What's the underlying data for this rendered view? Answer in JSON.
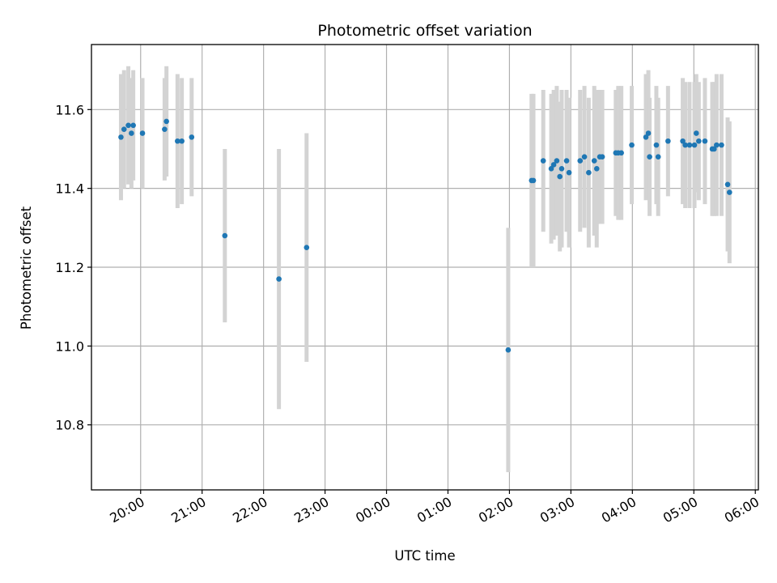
{
  "chart_data": {
    "type": "scatter",
    "title": "Photometric offset variation",
    "xlabel": "UTC time",
    "ylabel": "Photometric offset",
    "x_unit": "UTC time of day (hours; values after midnight exceed 24)",
    "xlim": [
      19.2,
      30.05
    ],
    "ylim": [
      10.635,
      11.765
    ],
    "grid": true,
    "x_ticks": [
      {
        "value": 20,
        "label": "20:00"
      },
      {
        "value": 21,
        "label": "21:00"
      },
      {
        "value": 22,
        "label": "22:00"
      },
      {
        "value": 23,
        "label": "23:00"
      },
      {
        "value": 24,
        "label": "00:00"
      },
      {
        "value": 25,
        "label": "01:00"
      },
      {
        "value": 26,
        "label": "02:00"
      },
      {
        "value": 27,
        "label": "03:00"
      },
      {
        "value": 28,
        "label": "04:00"
      },
      {
        "value": 29,
        "label": "05:00"
      },
      {
        "value": 30,
        "label": "06:00"
      }
    ],
    "y_ticks": [
      {
        "value": 10.8,
        "label": "10.8"
      },
      {
        "value": 11.0,
        "label": "11.0"
      },
      {
        "value": 11.2,
        "label": "11.2"
      },
      {
        "value": 11.4,
        "label": "11.4"
      },
      {
        "value": 11.6,
        "label": "11.6"
      }
    ],
    "colors": {
      "points": "#1f77b4",
      "error_bars": "#d3d3d3",
      "grid": "#b0b0b0",
      "axes": "#000000"
    },
    "series": [
      {
        "x": [
          19.68,
          19.73,
          19.8,
          19.85,
          19.88,
          20.03,
          20.39,
          20.42,
          20.6,
          20.67,
          20.83,
          21.37,
          22.25,
          22.7,
          25.98,
          26.36,
          26.39,
          26.55,
          26.68,
          26.72,
          26.77,
          26.82,
          26.85,
          26.93,
          26.97,
          27.15,
          27.22,
          27.29,
          27.38,
          27.42,
          27.47,
          27.51,
          27.73,
          27.77,
          27.82,
          27.99,
          28.22,
          28.26,
          28.28,
          28.39,
          28.42,
          28.58,
          28.82,
          28.86,
          28.93,
          29.01,
          29.04,
          29.08,
          29.18,
          29.3,
          29.33,
          29.37,
          29.45,
          29.55,
          29.58
        ],
        "y": [
          11.53,
          11.55,
          11.56,
          11.54,
          11.56,
          11.54,
          11.55,
          11.57,
          11.52,
          11.52,
          11.53,
          11.28,
          11.17,
          11.25,
          10.99,
          11.42,
          11.42,
          11.47,
          11.45,
          11.46,
          11.47,
          11.43,
          11.45,
          11.47,
          11.44,
          11.47,
          11.48,
          11.44,
          11.47,
          11.45,
          11.48,
          11.48,
          11.49,
          11.49,
          11.49,
          11.51,
          11.53,
          11.54,
          11.48,
          11.51,
          11.48,
          11.52,
          11.52,
          11.51,
          11.51,
          11.51,
          11.54,
          11.52,
          11.52,
          11.5,
          11.5,
          11.51,
          11.51,
          11.41,
          11.39
        ],
        "yerr": [
          0.16,
          0.15,
          0.15,
          0.14,
          0.14,
          0.14,
          0.13,
          0.14,
          0.17,
          0.16,
          0.15,
          0.22,
          0.33,
          0.29,
          0.31,
          0.22,
          0.22,
          0.18,
          0.19,
          0.19,
          0.19,
          0.19,
          0.2,
          0.18,
          0.19,
          0.18,
          0.18,
          0.19,
          0.19,
          0.2,
          0.17,
          0.17,
          0.16,
          0.17,
          0.17,
          0.15,
          0.16,
          0.16,
          0.15,
          0.15,
          0.15,
          0.14,
          0.16,
          0.16,
          0.16,
          0.16,
          0.15,
          0.15,
          0.16,
          0.17,
          0.17,
          0.18,
          0.18,
          0.17,
          0.18
        ]
      }
    ]
  }
}
